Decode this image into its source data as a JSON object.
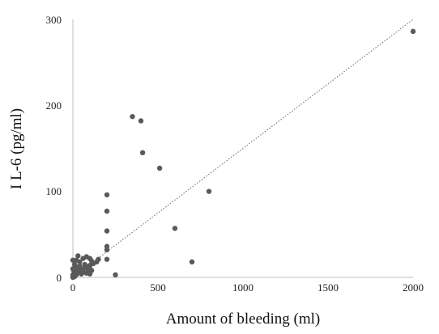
{
  "chart_data": {
    "type": "scatter",
    "xlabel": "Amount of bleeding (ml)",
    "ylabel": "I L-6 (pg/ml)",
    "xlim": [
      0,
      2000
    ],
    "ylim": [
      0,
      300
    ],
    "x_ticks": [
      0,
      500,
      1000,
      1500,
      2000
    ],
    "y_ticks": [
      0,
      100,
      200,
      300
    ],
    "x_tick_labels": [
      "0",
      "500",
      "1000",
      "1500",
      "2000"
    ],
    "y_tick_labels": [
      "0",
      "100",
      "200",
      "300"
    ],
    "grid": false,
    "legend": "none",
    "colors": {
      "point": "#5a5a5a",
      "axis": "#bfbfbf",
      "trendline": "#666666"
    },
    "trendline": {
      "style": "dotted",
      "from": [
        0,
        0
      ],
      "to": [
        2000,
        300
      ]
    },
    "points": [
      [
        2000,
        286
      ],
      [
        350,
        187
      ],
      [
        400,
        182
      ],
      [
        410,
        145
      ],
      [
        510,
        127
      ],
      [
        800,
        100
      ],
      [
        200,
        96
      ],
      [
        200,
        77
      ],
      [
        600,
        57
      ],
      [
        200,
        54
      ],
      [
        200,
        36
      ],
      [
        200,
        32
      ],
      [
        200,
        21
      ],
      [
        700,
        18
      ],
      [
        250,
        3
      ],
      [
        0,
        20
      ],
      [
        20,
        20
      ],
      [
        30,
        25
      ],
      [
        10,
        15
      ],
      [
        40,
        18
      ],
      [
        60,
        22
      ],
      [
        80,
        24
      ],
      [
        100,
        22
      ],
      [
        110,
        19
      ],
      [
        150,
        21
      ],
      [
        100,
        14
      ],
      [
        90,
        12
      ],
      [
        70,
        11
      ],
      [
        50,
        10
      ],
      [
        30,
        9
      ],
      [
        5,
        8
      ],
      [
        10,
        5
      ],
      [
        0,
        3
      ],
      [
        20,
        3
      ],
      [
        50,
        4
      ],
      [
        80,
        5
      ],
      [
        100,
        4
      ],
      [
        110,
        8
      ],
      [
        120,
        16
      ],
      [
        140,
        18
      ],
      [
        60,
        6
      ],
      [
        40,
        13
      ],
      [
        20,
        12
      ],
      [
        0,
        10
      ],
      [
        0,
        0
      ],
      [
        10,
        1
      ],
      [
        30,
        7
      ],
      [
        70,
        15
      ],
      [
        90,
        7
      ],
      [
        100,
        10
      ]
    ]
  }
}
